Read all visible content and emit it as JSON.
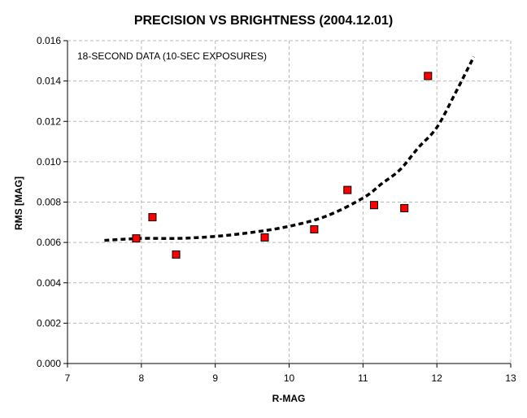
{
  "chart_data": {
    "type": "scatter",
    "title": "PRECISION VS BRIGHTNESS (2004.12.01)",
    "annotation": "18-SECOND DATA (10-SEC EXPOSURES)",
    "xlabel": "R-MAG",
    "ylabel": "RMS [MAG]",
    "xlim": [
      7,
      13
    ],
    "ylim": [
      0,
      0.016
    ],
    "x_ticks": [
      7,
      8,
      9,
      10,
      11,
      12,
      13
    ],
    "x_tick_labels": [
      "7",
      "8",
      "9",
      "10",
      "11",
      "12",
      "13"
    ],
    "y_ticks": [
      0,
      0.002,
      0.004,
      0.006,
      0.008,
      0.01,
      0.012,
      0.014,
      0.016
    ],
    "y_tick_labels": [
      "0.000",
      "0.002",
      "0.004",
      "0.006",
      "0.008",
      "0.010",
      "0.012",
      "0.014",
      "0.016"
    ],
    "grid": true,
    "points": [
      {
        "x": 7.93,
        "y": 0.0062
      },
      {
        "x": 8.15,
        "y": 0.00725
      },
      {
        "x": 8.47,
        "y": 0.0054
      },
      {
        "x": 9.67,
        "y": 0.00625
      },
      {
        "x": 10.34,
        "y": 0.00665
      },
      {
        "x": 10.79,
        "y": 0.0086
      },
      {
        "x": 11.15,
        "y": 0.00785
      },
      {
        "x": 11.56,
        "y": 0.0077
      },
      {
        "x": 11.88,
        "y": 0.01425
      }
    ],
    "trend": {
      "x": [
        7.5,
        8.0,
        8.5,
        9.0,
        9.5,
        10.0,
        10.5,
        11.0,
        11.25,
        11.5,
        11.75,
        12.0,
        12.25,
        12.5
      ],
      "y": [
        0.0061,
        0.0062,
        0.0062,
        0.0063,
        0.0065,
        0.0068,
        0.0073,
        0.0082,
        0.0089,
        0.0096,
        0.0107,
        0.0117,
        0.0134,
        0.0152
      ]
    },
    "colors": {
      "marker": "#ff0000",
      "marker_edge": "#000000",
      "trend": "#000000",
      "grid": "#b8b8b8"
    }
  }
}
